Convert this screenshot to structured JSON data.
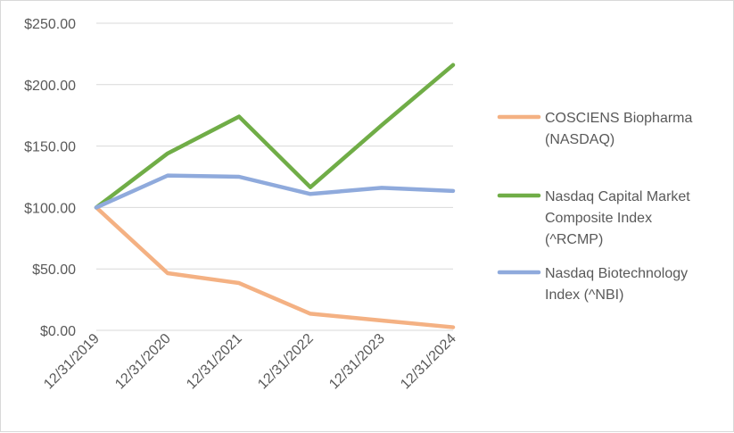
{
  "chart_data": {
    "type": "line",
    "categories": [
      "12/31/2019",
      "12/31/2020",
      "12/31/2021",
      "12/31/2022",
      "12/31/2023",
      "12/31/2024"
    ],
    "ylim": [
      0,
      250
    ],
    "yticks": [
      0,
      50,
      100,
      150,
      200,
      250
    ],
    "ytick_labels": [
      "$0.00",
      "$50.00",
      "$100.00",
      "$150.00",
      "$200.00",
      "$250.00"
    ],
    "grid": true,
    "legend_position": "right",
    "series": [
      {
        "name": "COSCIENS Biopharma (NASDAQ)",
        "legend_lines": [
          "COSCIENS Biopharma",
          "(NASDAQ)"
        ],
        "color": "#f4b183",
        "values": [
          100,
          46.5,
          38.5,
          13.5,
          8,
          2.5
        ]
      },
      {
        "name": "Nasdaq Capital Market Composite Index (^RCMP)",
        "legend_lines": [
          "Nasdaq Capital Market",
          "Composite Index",
          "(^RCMP)"
        ],
        "color": "#70ad47",
        "values": [
          100,
          144,
          174,
          116.5,
          167,
          216
        ]
      },
      {
        "name": "Nasdaq Biotechnology Index (^NBI)",
        "legend_lines": [
          "Nasdaq Biotechnology",
          "Index (^NBI)"
        ],
        "color": "#8faadc",
        "values": [
          100,
          126,
          125,
          111,
          116,
          113.5
        ]
      }
    ]
  }
}
